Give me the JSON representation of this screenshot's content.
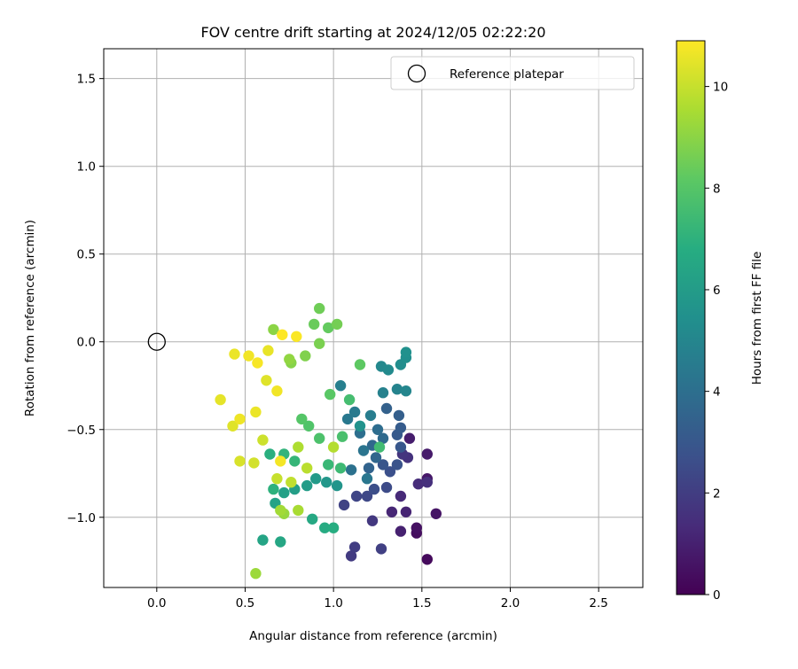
{
  "chart_data": {
    "type": "scatter",
    "title": "FOV centre drift starting at 2024/12/05 02:22:20",
    "xlabel": "Angular distance from reference (arcmin)",
    "ylabel": "Rotation from reference (arcmin)",
    "xlim": [
      -0.3,
      2.75
    ],
    "ylim": [
      -1.4,
      1.67
    ],
    "xticks": [
      "0.0",
      "0.5",
      "1.0",
      "1.5",
      "2.0",
      "2.5"
    ],
    "yticks": [
      "1.5",
      "1.0",
      "0.5",
      "0.0",
      "−0.5",
      "−1.0"
    ],
    "grid": true,
    "legend": {
      "placement": "upper-right",
      "entries": [
        "Reference platepar"
      ]
    },
    "reference_point": {
      "x": 0.0,
      "y": 0.0,
      "marker": "open-circle"
    },
    "colorbar": {
      "label": "Hours from first FF file",
      "colormap": "viridis",
      "range": [
        0,
        10.9
      ],
      "ticks": [
        "0",
        "2",
        "4",
        "6",
        "8",
        "10"
      ]
    },
    "series": [
      {
        "points": [
          {
            "x": 1.53,
            "y": -1.24,
            "t": 0.3
          },
          {
            "x": 1.47,
            "y": -1.09,
            "t": 0.4
          },
          {
            "x": 1.47,
            "y": -1.06,
            "t": 0.5
          },
          {
            "x": 1.58,
            "y": -0.98,
            "t": 0.6
          },
          {
            "x": 1.53,
            "y": -0.78,
            "t": 0.7
          },
          {
            "x": 1.53,
            "y": -0.64,
            "t": 0.8
          },
          {
            "x": 1.43,
            "y": -0.55,
            "t": 0.9
          },
          {
            "x": 1.38,
            "y": -1.08,
            "t": 1.0
          },
          {
            "x": 1.41,
            "y": -0.97,
            "t": 1.1
          },
          {
            "x": 1.33,
            "y": -0.97,
            "t": 1.2
          },
          {
            "x": 1.38,
            "y": -0.88,
            "t": 1.3
          },
          {
            "x": 1.48,
            "y": -0.81,
            "t": 1.4
          },
          {
            "x": 1.53,
            "y": -0.8,
            "t": 1.5
          },
          {
            "x": 1.42,
            "y": -0.66,
            "t": 1.6
          },
          {
            "x": 1.39,
            "y": -0.64,
            "t": 1.7
          },
          {
            "x": 1.22,
            "y": -1.02,
            "t": 1.8
          },
          {
            "x": 1.1,
            "y": -1.22,
            "t": 1.9
          },
          {
            "x": 1.12,
            "y": -1.17,
            "t": 2.0
          },
          {
            "x": 1.27,
            "y": -1.18,
            "t": 2.1
          },
          {
            "x": 1.06,
            "y": -0.93,
            "t": 2.2
          },
          {
            "x": 1.13,
            "y": -0.88,
            "t": 2.3
          },
          {
            "x": 1.19,
            "y": -0.88,
            "t": 2.4
          },
          {
            "x": 1.3,
            "y": -0.83,
            "t": 2.5
          },
          {
            "x": 1.23,
            "y": -0.84,
            "t": 2.6
          },
          {
            "x": 1.32,
            "y": -0.74,
            "t": 2.7
          },
          {
            "x": 1.36,
            "y": -0.7,
            "t": 2.8
          },
          {
            "x": 1.28,
            "y": -0.7,
            "t": 2.9
          },
          {
            "x": 1.38,
            "y": -0.6,
            "t": 3.0
          },
          {
            "x": 1.36,
            "y": -0.53,
            "t": 3.1
          },
          {
            "x": 1.38,
            "y": -0.49,
            "t": 3.2
          },
          {
            "x": 1.37,
            "y": -0.42,
            "t": 3.3
          },
          {
            "x": 1.3,
            "y": -0.38,
            "t": 3.4
          },
          {
            "x": 1.2,
            "y": -0.72,
            "t": 3.5
          },
          {
            "x": 1.24,
            "y": -0.66,
            "t": 3.6
          },
          {
            "x": 1.22,
            "y": -0.59,
            "t": 3.7
          },
          {
            "x": 1.28,
            "y": -0.55,
            "t": 3.8
          },
          {
            "x": 1.25,
            "y": -0.5,
            "t": 3.9
          },
          {
            "x": 1.15,
            "y": -0.52,
            "t": 4.0
          },
          {
            "x": 1.1,
            "y": -0.73,
            "t": 4.1
          },
          {
            "x": 1.17,
            "y": -0.62,
            "t": 4.2
          },
          {
            "x": 1.19,
            "y": -0.78,
            "t": 4.3
          },
          {
            "x": 1.08,
            "y": -0.44,
            "t": 4.4
          },
          {
            "x": 1.12,
            "y": -0.4,
            "t": 4.5
          },
          {
            "x": 1.21,
            "y": -0.42,
            "t": 4.6
          },
          {
            "x": 1.04,
            "y": -0.25,
            "t": 4.7
          },
          {
            "x": 1.28,
            "y": -0.29,
            "t": 4.8
          },
          {
            "x": 1.36,
            "y": -0.27,
            "t": 4.9
          },
          {
            "x": 1.41,
            "y": -0.28,
            "t": 5.0
          },
          {
            "x": 1.27,
            "y": -0.14,
            "t": 5.1
          },
          {
            "x": 1.31,
            "y": -0.16,
            "t": 5.2
          },
          {
            "x": 1.38,
            "y": -0.13,
            "t": 5.3
          },
          {
            "x": 1.41,
            "y": -0.09,
            "t": 5.4
          },
          {
            "x": 1.41,
            "y": -0.06,
            "t": 5.5
          },
          {
            "x": 1.15,
            "y": -0.48,
            "t": 5.6
          },
          {
            "x": 1.02,
            "y": -0.82,
            "t": 5.7
          },
          {
            "x": 0.96,
            "y": -0.8,
            "t": 5.8
          },
          {
            "x": 0.9,
            "y": -0.78,
            "t": 5.9
          },
          {
            "x": 0.85,
            "y": -0.82,
            "t": 6.0
          },
          {
            "x": 0.78,
            "y": -0.84,
            "t": 6.1
          },
          {
            "x": 0.72,
            "y": -0.86,
            "t": 6.2
          },
          {
            "x": 0.67,
            "y": -0.92,
            "t": 6.3
          },
          {
            "x": 0.6,
            "y": -1.13,
            "t": 6.4
          },
          {
            "x": 0.7,
            "y": -1.14,
            "t": 6.5
          },
          {
            "x": 0.88,
            "y": -1.01,
            "t": 6.6
          },
          {
            "x": 0.95,
            "y": -1.06,
            "t": 6.7
          },
          {
            "x": 1.0,
            "y": -1.06,
            "t": 6.8
          },
          {
            "x": 0.64,
            "y": -0.64,
            "t": 6.9
          },
          {
            "x": 0.66,
            "y": -0.84,
            "t": 7.0
          },
          {
            "x": 0.72,
            "y": -0.64,
            "t": 7.1
          },
          {
            "x": 0.78,
            "y": -0.68,
            "t": 7.2
          },
          {
            "x": 0.97,
            "y": -0.7,
            "t": 7.3
          },
          {
            "x": 1.04,
            "y": -0.72,
            "t": 7.4
          },
          {
            "x": 1.26,
            "y": -0.6,
            "t": 7.5
          },
          {
            "x": 1.09,
            "y": -0.33,
            "t": 7.6
          },
          {
            "x": 1.05,
            "y": -0.54,
            "t": 7.7
          },
          {
            "x": 0.92,
            "y": -0.55,
            "t": 7.8
          },
          {
            "x": 0.86,
            "y": -0.48,
            "t": 7.9
          },
          {
            "x": 0.82,
            "y": -0.44,
            "t": 8.0
          },
          {
            "x": 0.98,
            "y": -0.3,
            "t": 8.1
          },
          {
            "x": 1.15,
            "y": -0.13,
            "t": 8.2
          },
          {
            "x": 0.97,
            "y": 0.08,
            "t": 8.3
          },
          {
            "x": 0.89,
            "y": 0.1,
            "t": 8.4
          },
          {
            "x": 0.92,
            "y": 0.19,
            "t": 8.5
          },
          {
            "x": 1.02,
            "y": 0.1,
            "t": 8.6
          },
          {
            "x": 0.92,
            "y": -0.01,
            "t": 8.7
          },
          {
            "x": 0.84,
            "y": -0.08,
            "t": 8.8
          },
          {
            "x": 0.76,
            "y": -0.12,
            "t": 8.9
          },
          {
            "x": 0.66,
            "y": 0.07,
            "t": 9.0
          },
          {
            "x": 0.75,
            "y": -0.1,
            "t": 9.1
          },
          {
            "x": 0.72,
            "y": -0.98,
            "t": 9.2
          },
          {
            "x": 0.56,
            "y": -1.32,
            "t": 9.3
          },
          {
            "x": 0.7,
            "y": -0.96,
            "t": 9.4
          },
          {
            "x": 0.8,
            "y": -0.96,
            "t": 9.5
          },
          {
            "x": 0.8,
            "y": -0.6,
            "t": 9.6
          },
          {
            "x": 1.0,
            "y": -0.6,
            "t": 9.7
          },
          {
            "x": 0.85,
            "y": -0.72,
            "t": 9.8
          },
          {
            "x": 0.76,
            "y": -0.8,
            "t": 9.9
          },
          {
            "x": 0.68,
            "y": -0.78,
            "t": 10.0
          },
          {
            "x": 0.6,
            "y": -0.56,
            "t": 10.1
          },
          {
            "x": 0.55,
            "y": -0.69,
            "t": 10.2
          },
          {
            "x": 0.47,
            "y": -0.68,
            "t": 10.3
          },
          {
            "x": 0.43,
            "y": -0.48,
            "t": 10.4
          },
          {
            "x": 0.36,
            "y": -0.33,
            "t": 10.5
          },
          {
            "x": 0.44,
            "y": -0.07,
            "t": 10.6
          },
          {
            "x": 0.52,
            "y": -0.08,
            "t": 10.7
          },
          {
            "x": 0.57,
            "y": -0.12,
            "t": 10.8
          },
          {
            "x": 0.71,
            "y": 0.04,
            "t": 10.9
          },
          {
            "x": 0.79,
            "y": 0.03,
            "t": 10.85
          },
          {
            "x": 0.68,
            "y": -0.28,
            "t": 10.7
          },
          {
            "x": 0.7,
            "y": -0.68,
            "t": 10.75
          },
          {
            "x": 0.47,
            "y": -0.44,
            "t": 10.65
          },
          {
            "x": 0.56,
            "y": -0.4,
            "t": 10.6
          },
          {
            "x": 0.63,
            "y": -0.05,
            "t": 10.55
          },
          {
            "x": 0.62,
            "y": -0.22,
            "t": 10.4
          }
        ]
      }
    ]
  }
}
